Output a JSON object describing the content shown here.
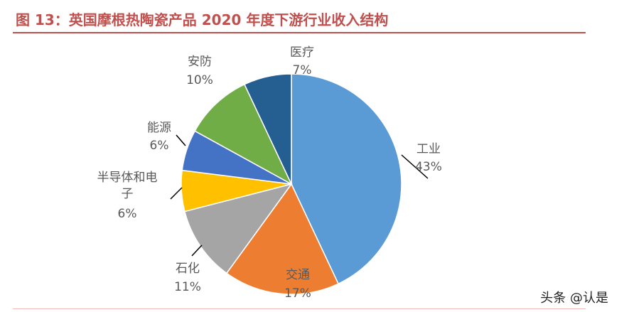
{
  "page": {
    "title": "图 13：英国摩根热陶瓷产品 2020 年度下游行业收入结构",
    "watermark": "头条 @认是"
  },
  "colors": {
    "title": "#c0504d",
    "rule": "#c0504d",
    "label": "#595959"
  },
  "chart_data": {
    "type": "pie",
    "title": "",
    "start_angle_deg": 90,
    "direction": "clockwise",
    "legend": "none",
    "slices": [
      {
        "name": "工业",
        "value": 43,
        "label": "43%",
        "color": "#5b9bd5"
      },
      {
        "name": "交通",
        "value": 17,
        "label": "17%",
        "color": "#ed7d31"
      },
      {
        "name": "石化",
        "value": 11,
        "label": "11%",
        "color": "#a5a5a5"
      },
      {
        "name": "半导体和电子",
        "value": 6,
        "label": "6%",
        "color": "#ffc000"
      },
      {
        "name": "能源",
        "value": 6,
        "label": "6%",
        "color": "#4472c4"
      },
      {
        "name": "安防",
        "value": 10,
        "label": "10%",
        "color": "#70ad47"
      },
      {
        "name": "医疗",
        "value": 7,
        "label": "7%",
        "color": "#255e91"
      }
    ]
  }
}
